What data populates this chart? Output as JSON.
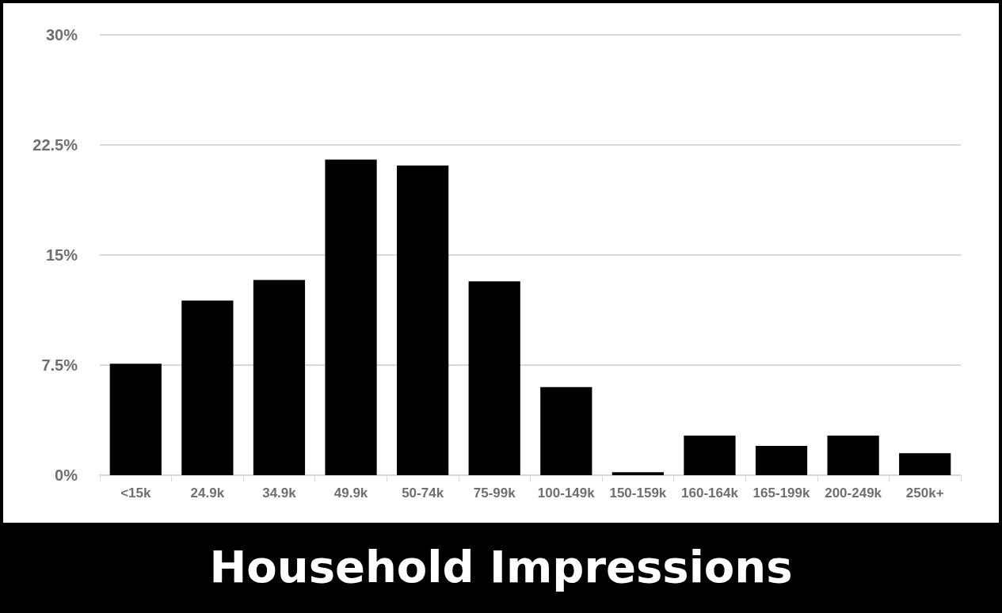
{
  "chart_data": {
    "type": "bar",
    "title": "Household Impressions",
    "categories": [
      "<15k",
      "24.9k",
      "34.9k",
      "49.9k",
      "50-74k",
      "75-99k",
      "100-149k",
      "150-159k",
      "160-164k",
      "165-199k",
      "200-249k",
      "250k+"
    ],
    "values": [
      7.6,
      11.9,
      13.3,
      21.5,
      21.1,
      13.2,
      6.0,
      0.2,
      2.7,
      2.0,
      2.7,
      1.5
    ],
    "color": "#000000",
    "ylim": [
      0,
      30
    ],
    "yticks": [
      {
        "value": 0,
        "label": "0%"
      },
      {
        "value": 7.5,
        "label": "7.5%"
      },
      {
        "value": 15,
        "label": "15%"
      },
      {
        "value": 22.5,
        "label": "22.5%"
      },
      {
        "value": 30,
        "label": "30%"
      }
    ],
    "grid": "y"
  }
}
